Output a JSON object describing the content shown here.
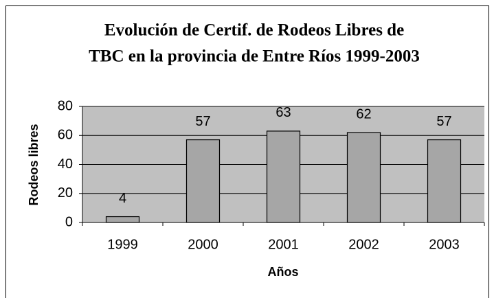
{
  "chart_data": {
    "type": "bar",
    "title": [
      "Evolución de Certif. de Rodeos Libres de",
      "TBC en la provincia de Entre Ríos 1999-2003"
    ],
    "x_label": "Años",
    "y_label": "Rodeos libres",
    "categories": [
      "1999",
      "2000",
      "2001",
      "2002",
      "2003"
    ],
    "values": [
      4,
      57,
      63,
      62,
      57
    ],
    "color": "#a6a6a6",
    "plot_background": "#c0c0c0",
    "ylim": [
      0,
      80
    ],
    "yticks": [
      0,
      20,
      40,
      60,
      80
    ],
    "grid": true
  }
}
